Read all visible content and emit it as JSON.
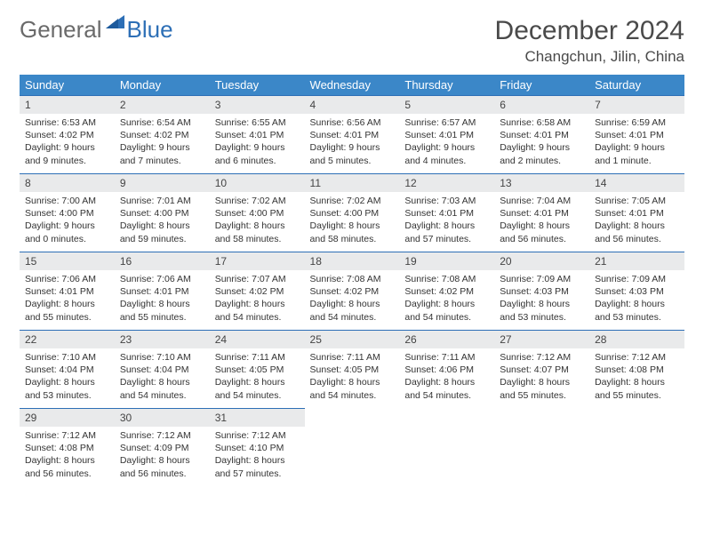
{
  "brand": {
    "part1": "General",
    "part2": "Blue"
  },
  "title": "December 2024",
  "location": "Changchun, Jilin, China",
  "colors": {
    "header_bg": "#3b87c8",
    "header_text": "#ffffff",
    "daynum_bg": "#e9eaeb",
    "day_border_top": "#2d6fb6",
    "page_bg": "#ffffff",
    "text": "#333333",
    "title_text": "#4a4a4a",
    "logo_gray": "#6a6a6a",
    "logo_blue": "#2d6fb6"
  },
  "weekdays": [
    "Sunday",
    "Monday",
    "Tuesday",
    "Wednesday",
    "Thursday",
    "Friday",
    "Saturday"
  ],
  "weeks": [
    [
      {
        "n": "1",
        "sr": "Sunrise: 6:53 AM",
        "ss": "Sunset: 4:02 PM",
        "dl": "Daylight: 9 hours and 9 minutes."
      },
      {
        "n": "2",
        "sr": "Sunrise: 6:54 AM",
        "ss": "Sunset: 4:02 PM",
        "dl": "Daylight: 9 hours and 7 minutes."
      },
      {
        "n": "3",
        "sr": "Sunrise: 6:55 AM",
        "ss": "Sunset: 4:01 PM",
        "dl": "Daylight: 9 hours and 6 minutes."
      },
      {
        "n": "4",
        "sr": "Sunrise: 6:56 AM",
        "ss": "Sunset: 4:01 PM",
        "dl": "Daylight: 9 hours and 5 minutes."
      },
      {
        "n": "5",
        "sr": "Sunrise: 6:57 AM",
        "ss": "Sunset: 4:01 PM",
        "dl": "Daylight: 9 hours and 4 minutes."
      },
      {
        "n": "6",
        "sr": "Sunrise: 6:58 AM",
        "ss": "Sunset: 4:01 PM",
        "dl": "Daylight: 9 hours and 2 minutes."
      },
      {
        "n": "7",
        "sr": "Sunrise: 6:59 AM",
        "ss": "Sunset: 4:01 PM",
        "dl": "Daylight: 9 hours and 1 minute."
      }
    ],
    [
      {
        "n": "8",
        "sr": "Sunrise: 7:00 AM",
        "ss": "Sunset: 4:00 PM",
        "dl": "Daylight: 9 hours and 0 minutes."
      },
      {
        "n": "9",
        "sr": "Sunrise: 7:01 AM",
        "ss": "Sunset: 4:00 PM",
        "dl": "Daylight: 8 hours and 59 minutes."
      },
      {
        "n": "10",
        "sr": "Sunrise: 7:02 AM",
        "ss": "Sunset: 4:00 PM",
        "dl": "Daylight: 8 hours and 58 minutes."
      },
      {
        "n": "11",
        "sr": "Sunrise: 7:02 AM",
        "ss": "Sunset: 4:00 PM",
        "dl": "Daylight: 8 hours and 58 minutes."
      },
      {
        "n": "12",
        "sr": "Sunrise: 7:03 AM",
        "ss": "Sunset: 4:01 PM",
        "dl": "Daylight: 8 hours and 57 minutes."
      },
      {
        "n": "13",
        "sr": "Sunrise: 7:04 AM",
        "ss": "Sunset: 4:01 PM",
        "dl": "Daylight: 8 hours and 56 minutes."
      },
      {
        "n": "14",
        "sr": "Sunrise: 7:05 AM",
        "ss": "Sunset: 4:01 PM",
        "dl": "Daylight: 8 hours and 56 minutes."
      }
    ],
    [
      {
        "n": "15",
        "sr": "Sunrise: 7:06 AM",
        "ss": "Sunset: 4:01 PM",
        "dl": "Daylight: 8 hours and 55 minutes."
      },
      {
        "n": "16",
        "sr": "Sunrise: 7:06 AM",
        "ss": "Sunset: 4:01 PM",
        "dl": "Daylight: 8 hours and 55 minutes."
      },
      {
        "n": "17",
        "sr": "Sunrise: 7:07 AM",
        "ss": "Sunset: 4:02 PM",
        "dl": "Daylight: 8 hours and 54 minutes."
      },
      {
        "n": "18",
        "sr": "Sunrise: 7:08 AM",
        "ss": "Sunset: 4:02 PM",
        "dl": "Daylight: 8 hours and 54 minutes."
      },
      {
        "n": "19",
        "sr": "Sunrise: 7:08 AM",
        "ss": "Sunset: 4:02 PM",
        "dl": "Daylight: 8 hours and 54 minutes."
      },
      {
        "n": "20",
        "sr": "Sunrise: 7:09 AM",
        "ss": "Sunset: 4:03 PM",
        "dl": "Daylight: 8 hours and 53 minutes."
      },
      {
        "n": "21",
        "sr": "Sunrise: 7:09 AM",
        "ss": "Sunset: 4:03 PM",
        "dl": "Daylight: 8 hours and 53 minutes."
      }
    ],
    [
      {
        "n": "22",
        "sr": "Sunrise: 7:10 AM",
        "ss": "Sunset: 4:04 PM",
        "dl": "Daylight: 8 hours and 53 minutes."
      },
      {
        "n": "23",
        "sr": "Sunrise: 7:10 AM",
        "ss": "Sunset: 4:04 PM",
        "dl": "Daylight: 8 hours and 54 minutes."
      },
      {
        "n": "24",
        "sr": "Sunrise: 7:11 AM",
        "ss": "Sunset: 4:05 PM",
        "dl": "Daylight: 8 hours and 54 minutes."
      },
      {
        "n": "25",
        "sr": "Sunrise: 7:11 AM",
        "ss": "Sunset: 4:05 PM",
        "dl": "Daylight: 8 hours and 54 minutes."
      },
      {
        "n": "26",
        "sr": "Sunrise: 7:11 AM",
        "ss": "Sunset: 4:06 PM",
        "dl": "Daylight: 8 hours and 54 minutes."
      },
      {
        "n": "27",
        "sr": "Sunrise: 7:12 AM",
        "ss": "Sunset: 4:07 PM",
        "dl": "Daylight: 8 hours and 55 minutes."
      },
      {
        "n": "28",
        "sr": "Sunrise: 7:12 AM",
        "ss": "Sunset: 4:08 PM",
        "dl": "Daylight: 8 hours and 55 minutes."
      }
    ],
    [
      {
        "n": "29",
        "sr": "Sunrise: 7:12 AM",
        "ss": "Sunset: 4:08 PM",
        "dl": "Daylight: 8 hours and 56 minutes."
      },
      {
        "n": "30",
        "sr": "Sunrise: 7:12 AM",
        "ss": "Sunset: 4:09 PM",
        "dl": "Daylight: 8 hours and 56 minutes."
      },
      {
        "n": "31",
        "sr": "Sunrise: 7:12 AM",
        "ss": "Sunset: 4:10 PM",
        "dl": "Daylight: 8 hours and 57 minutes."
      },
      null,
      null,
      null,
      null
    ]
  ]
}
